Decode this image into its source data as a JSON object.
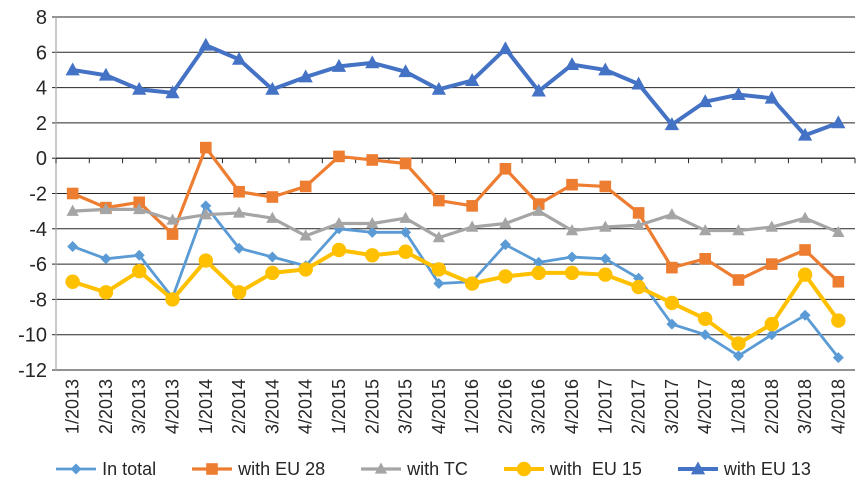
{
  "chart_data": {
    "type": "line",
    "title": "",
    "xlabel": "",
    "ylabel": "",
    "categories": [
      "1/2013",
      "2/2013",
      "3/2013",
      "4/2013",
      "1/2014",
      "2/2014",
      "3/2014",
      "4/2014",
      "1/2015",
      "2/2015",
      "3/2015",
      "4/2015",
      "1/2016",
      "2/2016",
      "3/2016",
      "4/2016",
      "1/2017",
      "2/2017",
      "3/2017",
      "4/2017",
      "1/2018",
      "2/2018",
      "3/2018",
      "4/2018"
    ],
    "series": [
      {
        "name": "In total",
        "marker": "diamond",
        "color": "#5B9BD5",
        "line_width": 2.8,
        "marker_size": 5.5,
        "values": [
          -5.0,
          -5.7,
          -5.5,
          -7.9,
          -2.7,
          -5.1,
          -5.6,
          -6.1,
          -4.0,
          -4.2,
          -4.2,
          -7.1,
          -7.0,
          -4.9,
          -5.9,
          -5.6,
          -5.7,
          -6.8,
          -9.4,
          -10.0,
          -11.2,
          -10.0,
          -8.9,
          -11.3
        ]
      },
      {
        "name": "with EU 28",
        "marker": "square",
        "color": "#ED7D31",
        "line_width": 3.2,
        "marker_size": 5.8,
        "values": [
          -2.0,
          -2.8,
          -2.5,
          -4.3,
          0.6,
          -1.9,
          -2.2,
          -1.6,
          0.1,
          -0.1,
          -0.3,
          -2.4,
          -2.7,
          -0.6,
          -2.6,
          -1.5,
          -1.6,
          -3.1,
          -6.2,
          -5.7,
          -6.9,
          -6.0,
          -5.2,
          -7.0
        ]
      },
      {
        "name": "with TC",
        "marker": "triangle",
        "color": "#A5A5A5",
        "line_width": 3.2,
        "marker_size": 6.5,
        "values": [
          -3.0,
          -2.9,
          -2.9,
          -3.5,
          -3.2,
          -3.1,
          -3.4,
          -4.4,
          -3.7,
          -3.7,
          -3.4,
          -4.5,
          -3.9,
          -3.7,
          -3.0,
          -4.1,
          -3.9,
          -3.8,
          -3.2,
          -4.1,
          -4.1,
          -3.9,
          -3.4,
          -4.2
        ]
      },
      {
        "name": "with  EU 15",
        "marker": "circle",
        "color": "#FFC000",
        "line_width": 4.0,
        "marker_size": 7.2,
        "values": [
          -7.0,
          -7.6,
          -6.4,
          -8.0,
          -5.8,
          -7.6,
          -6.5,
          -6.3,
          -5.2,
          -5.5,
          -5.3,
          -6.3,
          -7.1,
          -6.7,
          -6.5,
          -6.5,
          -6.6,
          -7.3,
          -8.2,
          -9.1,
          -10.5,
          -9.4,
          -6.6,
          -9.2
        ]
      },
      {
        "name": "with EU 13",
        "marker": "triangle",
        "color": "#4472C4",
        "line_width": 4.0,
        "marker_size": 7.5,
        "values": [
          5.0,
          4.7,
          3.9,
          3.7,
          6.4,
          5.6,
          3.9,
          4.6,
          5.2,
          5.4,
          4.9,
          3.9,
          4.4,
          6.2,
          3.8,
          5.3,
          5.0,
          4.2,
          1.9,
          3.2,
          3.6,
          3.4,
          1.3,
          2.0
        ]
      }
    ],
    "ylim": [
      -12,
      8
    ],
    "ytick_step": 2,
    "ytick_labels": [
      "8",
      "6",
      "4",
      "2",
      "0",
      "-2",
      "-4",
      "-6",
      "-8",
      "-10",
      "-12"
    ],
    "grid": true,
    "legend_position": "bottom",
    "colors": {
      "gridline": "#262626",
      "zero_axis": "#262626",
      "y_axis_line": "#A6A6A6",
      "tick": "#262626",
      "axis_text": "#262626",
      "background": "#FFFFFF"
    }
  }
}
